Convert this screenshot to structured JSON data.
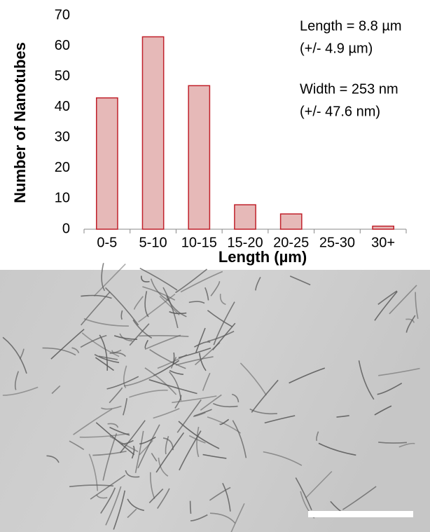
{
  "chart_data": {
    "type": "bar",
    "x_label": "Length (µm)",
    "y_label": "Number of Nanotubes",
    "annotations": [
      "Length = 8.8 µm",
      "(+/- 4.9 µm)",
      "Width = 253 nm",
      "(+/- 47.6 nm)"
    ],
    "categories": [
      "0-5",
      "5-10",
      "10-15",
      "15-20",
      "20-25",
      "25-30",
      "30+"
    ],
    "values": [
      43,
      63,
      47,
      8,
      5,
      0,
      1
    ],
    "color": "#e6b9b8",
    "edge_color": "#c0202a",
    "ylim": [
      0,
      70
    ],
    "yticks": [
      0,
      10,
      20,
      30,
      40,
      50,
      60,
      70
    ],
    "grid": false
  }
}
